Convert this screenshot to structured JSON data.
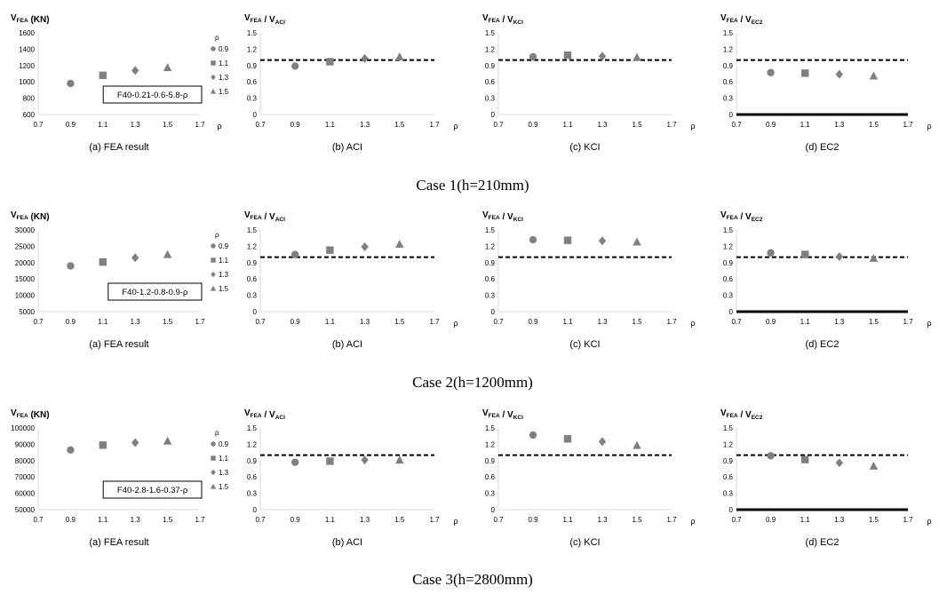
{
  "figure": {
    "case_titles": [
      "Case 1(h=210mm)",
      "Case 2(h=1200mm)",
      "Case 3(h=2800mm)"
    ]
  },
  "colors": {
    "marker": "#808080",
    "axis": "#d9d9d9",
    "reference": "#000000"
  },
  "chart_data": [
    {
      "type": "scatter",
      "panel": "(a) FEA result",
      "ylabel_main": "V",
      "ylabel_sub": "FEA",
      "ylabel_tail": " (KN)",
      "xlim": [
        0.7,
        1.7
      ],
      "xticks": [
        "0.7",
        "0.9",
        "1.1",
        "1.3",
        "1.5",
        "1.7"
      ],
      "ylim": [
        600,
        1600
      ],
      "yticks": [
        "600",
        "800",
        "1000",
        "1200",
        "1400",
        "1600"
      ],
      "x": [
        0.9,
        1.1,
        1.3,
        1.5
      ],
      "y": [
        980,
        1080,
        1140,
        1175
      ],
      "xlabel": "ρ",
      "label_box": "F40-0.21-0.6-5.8-ρ",
      "legend_title": "ρ",
      "legend": [
        "0.9",
        "1.1",
        "1.3",
        "1.5"
      ]
    },
    {
      "type": "scatter",
      "panel": "(b) ACI",
      "ylabel_main": "V",
      "ylabel_sub": "FEA",
      "ylabel_mid": " / V",
      "ylabel_sub2": "ACI",
      "xlim": [
        0.7,
        1.7
      ],
      "xticks": [
        "0.7",
        "0.9",
        "1.1",
        "1.3",
        "1.5",
        "1.7"
      ],
      "ylim": [
        0,
        1.5
      ],
      "yticks": [
        "0",
        "0.3",
        "0.6",
        "0.9",
        "1.2",
        "1.5"
      ],
      "x": [
        0.9,
        1.1,
        1.3,
        1.5
      ],
      "y": [
        0.89,
        0.97,
        1.03,
        1.06
      ],
      "reference_line": 1.0,
      "xlabel": "ρ"
    },
    {
      "type": "scatter",
      "panel": "(c) KCI",
      "ylabel_main": "V",
      "ylabel_sub": "FEA",
      "ylabel_mid": " / V",
      "ylabel_sub2": "KCI",
      "xlim": [
        0.7,
        1.7
      ],
      "xticks": [
        "0.7",
        "0.9",
        "1.1",
        "1.3",
        "1.5",
        "1.7"
      ],
      "ylim": [
        0,
        1.5
      ],
      "yticks": [
        "0",
        "0.3",
        "0.6",
        "0.9",
        "1.2",
        "1.5"
      ],
      "x": [
        0.9,
        1.1,
        1.3,
        1.5
      ],
      "y": [
        1.06,
        1.09,
        1.07,
        1.05
      ],
      "reference_line": 1.0,
      "xlabel": "ρ"
    },
    {
      "type": "scatter",
      "panel": "(d) EC2",
      "ylabel_main": "V",
      "ylabel_sub": "FEA",
      "ylabel_mid": " / V",
      "ylabel_sub2": "EC2",
      "xlim": [
        0.7,
        1.7
      ],
      "xticks": [
        "0.7",
        "0.9",
        "1.1",
        "1.3",
        "1.5",
        "1.7"
      ],
      "ylim": [
        0,
        1.5
      ],
      "yticks": [
        "0",
        "0.3",
        "0.6",
        "0.9",
        "1.2",
        "1.5"
      ],
      "x": [
        0.9,
        1.1,
        1.3,
        1.5
      ],
      "y": [
        0.77,
        0.76,
        0.74,
        0.71
      ],
      "reference_line": 1.0,
      "xlabel": "ρ",
      "bold_x_axis": true
    },
    {
      "type": "scatter",
      "panel": "(a) FEA result",
      "ylabel_main": "V",
      "ylabel_sub": "FEA",
      "ylabel_tail": " (KN)",
      "xlim": [
        0.7,
        1.7
      ],
      "xticks": [
        "0.7",
        "0.9",
        "1.1",
        "1.3",
        "1.5",
        "1.7"
      ],
      "ylim": [
        5000,
        30000
      ],
      "yticks": [
        "5000",
        "10000",
        "15000",
        "20000",
        "25000",
        "30000"
      ],
      "x": [
        0.9,
        1.1,
        1.3,
        1.5
      ],
      "y": [
        19000,
        20200,
        21500,
        22500
      ],
      "xlabel": "",
      "label_box": "F40-1.2-0.8-0.9-ρ",
      "legend_title": "ρ",
      "legend": [
        "0.9",
        "1.1",
        "1.3",
        "1.5"
      ]
    },
    {
      "type": "scatter",
      "panel": "(b) ACI",
      "ylabel_main": "V",
      "ylabel_sub": "FEA",
      "ylabel_mid": " / V",
      "ylabel_sub2": "ACI",
      "xlim": [
        0.7,
        1.7
      ],
      "xticks": [
        "0.7",
        "0.9",
        "1.1",
        "1.3",
        "1.5",
        "1.7"
      ],
      "ylim": [
        0,
        1.5
      ],
      "yticks": [
        "0",
        "0.3",
        "0.6",
        "0.9",
        "1.2",
        "1.5"
      ],
      "x": [
        0.9,
        1.1,
        1.3,
        1.5
      ],
      "y": [
        1.05,
        1.13,
        1.19,
        1.24
      ],
      "reference_line": 1.0,
      "xlabel": "ρ"
    },
    {
      "type": "scatter",
      "panel": "(c) KCI",
      "ylabel_main": "V",
      "ylabel_sub": "FEA",
      "ylabel_mid": " / V",
      "ylabel_sub2": "KCI",
      "xlim": [
        0.7,
        1.7
      ],
      "xticks": [
        "0.7",
        "0.9",
        "1.1",
        "1.3",
        "1.5",
        "1.7"
      ],
      "ylim": [
        0,
        1.5
      ],
      "yticks": [
        "0",
        "0.3",
        "0.6",
        "0.9",
        "1.2",
        "1.5"
      ],
      "x": [
        0.9,
        1.1,
        1.3,
        1.5
      ],
      "y": [
        1.32,
        1.31,
        1.3,
        1.28
      ],
      "reference_line": 1.0,
      "xlabel": "ρ"
    },
    {
      "type": "scatter",
      "panel": "(d) EC2",
      "ylabel_main": "V",
      "ylabel_sub": "FEA",
      "ylabel_mid": " / V",
      "ylabel_sub2": "EC2",
      "xlim": [
        0.7,
        1.7
      ],
      "xticks": [
        "0.7",
        "0.9",
        "1.1",
        "1.3",
        "1.5",
        "1.7"
      ],
      "ylim": [
        0,
        1.5
      ],
      "yticks": [
        "0",
        "0.3",
        "0.6",
        "0.9",
        "1.2",
        "1.5"
      ],
      "x": [
        0.9,
        1.1,
        1.3,
        1.5
      ],
      "y": [
        1.08,
        1.05,
        1.01,
        0.98
      ],
      "reference_line": 1.0,
      "xlabel": "ρ",
      "bold_x_axis": true
    },
    {
      "type": "scatter",
      "panel": "(a) FEA result",
      "ylabel_main": "V",
      "ylabel_sub": "FEA",
      "ylabel_tail": " (KN)",
      "xlim": [
        0.7,
        1.7
      ],
      "xticks": [
        "0.7",
        "0.9",
        "1.1",
        "1.3",
        "1.5",
        "1.7"
      ],
      "ylim": [
        50000,
        100000
      ],
      "yticks": [
        "50000",
        "60000",
        "70000",
        "80000",
        "90000",
        "100000"
      ],
      "x": [
        0.9,
        1.1,
        1.3,
        1.5
      ],
      "y": [
        86500,
        89500,
        91000,
        92000
      ],
      "xlabel": "",
      "label_box": "F40-2.8-1.6-0.37-ρ",
      "legend_title": "ρ",
      "legend": [
        "0.9",
        "1.1",
        "1.3",
        "1.5"
      ]
    },
    {
      "type": "scatter",
      "panel": "(b) ACI",
      "ylabel_main": "V",
      "ylabel_sub": "FEA",
      "ylabel_mid": " / V",
      "ylabel_sub2": "ACI",
      "xlim": [
        0.7,
        1.7
      ],
      "xticks": [
        "0.7",
        "0.9",
        "1.1",
        "1.3",
        "1.5",
        "1.7"
      ],
      "ylim": [
        0,
        1.5
      ],
      "yticks": [
        "0",
        "0.3",
        "0.6",
        "0.9",
        "1.2",
        "1.5"
      ],
      "x": [
        0.9,
        1.1,
        1.3,
        1.5
      ],
      "y": [
        0.87,
        0.89,
        0.91,
        0.91
      ],
      "reference_line": 1.0,
      "xlabel": "ρ"
    },
    {
      "type": "scatter",
      "panel": "(c) KCI",
      "ylabel_main": "V",
      "ylabel_sub": "FEA",
      "ylabel_mid": " / V",
      "ylabel_sub2": "KCI",
      "xlim": [
        0.7,
        1.7
      ],
      "xticks": [
        "0.7",
        "0.9",
        "1.1",
        "1.3",
        "1.5",
        "1.7"
      ],
      "ylim": [
        0,
        1.5
      ],
      "yticks": [
        "0",
        "0.3",
        "0.6",
        "0.9",
        "1.2",
        "1.5"
      ],
      "x": [
        0.9,
        1.1,
        1.3,
        1.5
      ],
      "y": [
        1.37,
        1.3,
        1.25,
        1.18
      ],
      "reference_line": 1.0,
      "xlabel": "ρ"
    },
    {
      "type": "scatter",
      "panel": "(d) EC2",
      "ylabel_main": "V",
      "ylabel_sub": "FEA",
      "ylabel_mid": " / V",
      "ylabel_sub2": "EC2",
      "xlim": [
        0.7,
        1.7
      ],
      "xticks": [
        "0.7",
        "0.9",
        "1.1",
        "1.3",
        "1.5",
        "1.7"
      ],
      "ylim": [
        0,
        1.5
      ],
      "yticks": [
        "0",
        "0.3",
        "0.6",
        "0.9",
        "1.2",
        "1.5"
      ],
      "x": [
        0.9,
        1.1,
        1.3,
        1.5
      ],
      "y": [
        0.99,
        0.92,
        0.86,
        0.8
      ],
      "reference_line": 1.0,
      "xlabel": "ρ",
      "bold_x_axis": true
    }
  ]
}
